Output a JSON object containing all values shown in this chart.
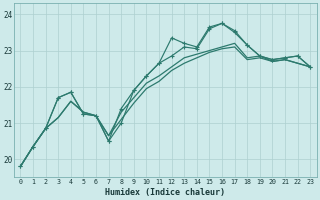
{
  "xlabel": "Humidex (Indice chaleur)",
  "ylabel": "",
  "background_color": "#ceeaea",
  "grid_color": "#aed0d0",
  "line_color": "#2d7a6e",
  "xlim": [
    -0.5,
    23.5
  ],
  "ylim": [
    19.5,
    24.3
  ],
  "yticks": [
    20,
    21,
    22,
    23,
    24
  ],
  "xticks": [
    0,
    1,
    2,
    3,
    4,
    5,
    6,
    7,
    8,
    9,
    10,
    11,
    12,
    13,
    14,
    15,
    16,
    17,
    18,
    19,
    20,
    21,
    22,
    23
  ],
  "series": [
    {
      "x": [
        0,
        1,
        2,
        3,
        4,
        5,
        6,
        7,
        8,
        9,
        10,
        11,
        12,
        13,
        14,
        15,
        16,
        17,
        18,
        19,
        20,
        21,
        22,
        23
      ],
      "y": [
        19.8,
        20.35,
        20.85,
        21.15,
        21.6,
        21.3,
        21.2,
        20.65,
        21.1,
        21.55,
        21.95,
        22.15,
        22.45,
        22.65,
        22.8,
        22.95,
        23.05,
        23.1,
        22.75,
        22.8,
        22.7,
        22.75,
        22.65,
        22.55
      ],
      "marker": false,
      "linewidth": 0.9
    },
    {
      "x": [
        0,
        1,
        2,
        3,
        4,
        5,
        6,
        7,
        8,
        9,
        10,
        11,
        12,
        13,
        14,
        15,
        16,
        17,
        18,
        19,
        20,
        21,
        22,
        23
      ],
      "y": [
        19.8,
        20.35,
        20.85,
        21.15,
        21.6,
        21.3,
        21.2,
        20.65,
        21.3,
        21.7,
        22.1,
        22.3,
        22.55,
        22.8,
        22.9,
        23.0,
        23.1,
        23.2,
        22.8,
        22.85,
        22.7,
        22.75,
        22.65,
        22.55
      ],
      "marker": false,
      "linewidth": 0.9
    },
    {
      "x": [
        0,
        1,
        2,
        3,
        4,
        5,
        6,
        7,
        8,
        9,
        10,
        11,
        12,
        13,
        14,
        15,
        16,
        17,
        18,
        19,
        20,
        21,
        22,
        23
      ],
      "y": [
        19.8,
        20.35,
        20.85,
        21.7,
        21.85,
        21.25,
        21.2,
        20.5,
        21.0,
        21.9,
        22.3,
        22.65,
        23.35,
        23.2,
        23.1,
        23.65,
        23.75,
        23.5,
        23.15,
        22.85,
        22.75,
        22.8,
        22.85,
        22.55
      ],
      "marker": true,
      "linewidth": 0.85
    },
    {
      "x": [
        0,
        1,
        2,
        3,
        4,
        5,
        6,
        7,
        8,
        9,
        10,
        11,
        12,
        13,
        14,
        15,
        16,
        17,
        18,
        19,
        20,
        21,
        22,
        23
      ],
      "y": [
        19.8,
        20.35,
        20.85,
        21.7,
        21.85,
        21.25,
        21.2,
        20.5,
        21.4,
        21.9,
        22.3,
        22.65,
        22.85,
        23.1,
        23.05,
        23.6,
        23.75,
        23.55,
        23.15,
        22.85,
        22.75,
        22.8,
        22.85,
        22.55
      ],
      "marker": true,
      "linewidth": 0.85
    }
  ]
}
